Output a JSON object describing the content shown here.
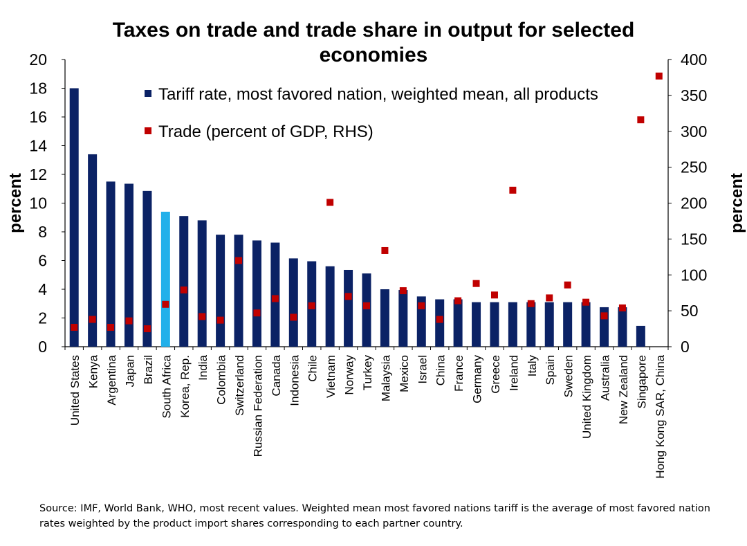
{
  "chart_data": {
    "type": "bar",
    "title": "Taxes on trade and trade share in output for selected economies",
    "ylabel": "percent",
    "y2label": "percent",
    "ylim": [
      0,
      20
    ],
    "y2lim": [
      0,
      400
    ],
    "yticks": [
      0,
      2,
      4,
      6,
      8,
      10,
      12,
      14,
      16,
      18,
      20
    ],
    "y2ticks": [
      0,
      50,
      100,
      150,
      200,
      250,
      300,
      350,
      400
    ],
    "grid": false,
    "legend_position": "top-center",
    "categories": [
      "United States",
      "Kenya",
      "Argentina",
      "Japan",
      "Brazil",
      "South Africa",
      "Korea, Rep.",
      "India",
      "Colombia",
      "Switzerland",
      "Russian Federation",
      "Canada",
      "Indonesia",
      "Chile",
      "Vietnam",
      "Norway",
      "Turkey",
      "Malaysia",
      "Mexico",
      "Israel",
      "China",
      "France",
      "Germany",
      "Greece",
      "Ireland",
      "Italy",
      "Spain",
      "Sweden",
      "United Kingdom",
      "Australia",
      "New Zealand",
      "Singapore",
      "Hong Kong SAR, China"
    ],
    "highlight_category": "South Africa",
    "series": [
      {
        "name": "Tariff rate, most favored nation, weighted mean, all products",
        "type": "bar",
        "axis": "left",
        "color": "#0b2265",
        "highlight_color": "#22b0ea",
        "values": [
          18.0,
          13.4,
          11.5,
          11.35,
          10.85,
          9.4,
          9.1,
          8.8,
          7.8,
          7.8,
          7.4,
          7.25,
          6.15,
          5.95,
          5.6,
          5.35,
          5.1,
          4.0,
          3.95,
          3.5,
          3.3,
          3.3,
          3.1,
          3.1,
          3.1,
          3.1,
          3.1,
          3.1,
          3.1,
          2.75,
          2.75,
          1.45,
          null
        ]
      },
      {
        "name": "Trade (percent of GDP, RHS)",
        "type": "scatter",
        "axis": "right",
        "color": "#c00000",
        "values": [
          27,
          38,
          27,
          36,
          25,
          59,
          79,
          42,
          37,
          120,
          47,
          67,
          41,
          57,
          201,
          70,
          57,
          134,
          78,
          57,
          38,
          64,
          88,
          72,
          218,
          60,
          68,
          86,
          62,
          43,
          54,
          316,
          377
        ]
      }
    ]
  },
  "source_note": "Source: IMF, World Bank, WHO, most recent values. Weighted mean most favored nations tariff is the average of most favored nation rates weighted by the product import shares corresponding to each partner country."
}
